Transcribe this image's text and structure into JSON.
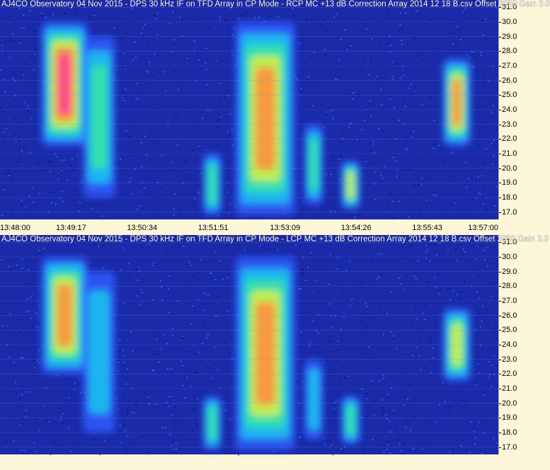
{
  "chart_data": [
    {
      "type": "heatmap",
      "title": "AJ4CO Observatory 04 Nov 2015 - DPS 30 kHz IF on TFD Array in CP Mode - RCP  MC +13 dB  Correction Array 2014 12 18 B.csv  Offset 2050  Gain 3.0",
      "xlabel": "",
      "ylabel": "",
      "x_ticks": [
        "13:48:00",
        "13:49:17",
        "13:50:34",
        "13:51:51",
        "13:53:09",
        "13:54:26",
        "13:55:43",
        "13:57:00"
      ],
      "y_ticks": [
        31.0,
        30.0,
        29.0,
        28.0,
        27.0,
        26.0,
        25.0,
        24.0,
        23.0,
        22.0,
        21.0,
        20.0,
        19.0,
        18.0,
        17.0
      ],
      "y_tick_labels": [
        "31.0",
        "30.0",
        "29.0",
        "28.0",
        "27.0",
        "26.0",
        "25.0",
        "24.0",
        "23.0",
        "22.0",
        "21.0",
        "20.0",
        "19.0",
        "18.0",
        "17.0"
      ],
      "ylim": [
        16.5,
        31.5
      ],
      "xlim": [
        "13:48:00",
        "13:57:00"
      ],
      "colormap": [
        "#1a2aa8",
        "#2e5cff",
        "#19c8f0",
        "#37e8a0",
        "#d8f040",
        "#ff8a3c",
        "#ff3a96"
      ],
      "emission_regions": [
        {
          "t_start": "13:48:45",
          "t_end": "13:49:35",
          "f_low": 21.5,
          "f_high": 30.0,
          "peak": 0.95
        },
        {
          "t_start": "13:49:30",
          "t_end": "13:50:05",
          "f_low": 18.0,
          "f_high": 29.0,
          "peak": 0.45
        },
        {
          "t_start": "13:51:40",
          "t_end": "13:52:00",
          "f_low": 16.8,
          "f_high": 21.0,
          "peak": 0.55
        },
        {
          "t_start": "13:52:15",
          "t_end": "13:53:20",
          "f_low": 16.8,
          "f_high": 30.0,
          "peak": 0.9
        },
        {
          "t_start": "13:53:30",
          "t_end": "13:53:50",
          "f_low": 17.5,
          "f_high": 23.0,
          "peak": 0.45
        },
        {
          "t_start": "13:54:10",
          "t_end": "13:54:30",
          "f_low": 17.2,
          "f_high": 20.5,
          "peak": 0.6
        },
        {
          "t_start": "13:56:00",
          "t_end": "13:56:30",
          "f_low": 21.5,
          "f_high": 27.5,
          "peak": 0.75
        }
      ]
    },
    {
      "type": "heatmap",
      "title": "AJ4CO Observatory 04 Nov 2015 - DPS 30 kHz IF on TFD Array in CP Mode - LCP  MC +13 dB  Correction Array 2014 12 18 B.csv  Offset 2050  Gain 3.0",
      "xlabel": "",
      "ylabel": "",
      "y_ticks": [
        31.0,
        30.0,
        29.0,
        28.0,
        27.0,
        26.0,
        25.0,
        24.0,
        23.0,
        22.0,
        21.0,
        20.0,
        19.0,
        18.0,
        17.0
      ],
      "y_tick_labels": [
        "31.0",
        "30.0",
        "29.0",
        "28.0",
        "27.0",
        "26.0",
        "25.0",
        "24.0",
        "23.0",
        "22.0",
        "21.0",
        "20.0",
        "19.0",
        "18.0",
        "17.0"
      ],
      "ylim": [
        16.5,
        31.5
      ],
      "xlim": [
        "13:48:00",
        "13:57:00"
      ],
      "colormap": [
        "#1a2aa8",
        "#2e5cff",
        "#19c8f0",
        "#37e8a0",
        "#d8f040",
        "#ff8a3c",
        "#ff3a96"
      ],
      "emission_regions": [
        {
          "t_start": "13:48:45",
          "t_end": "13:49:35",
          "f_low": 22.0,
          "f_high": 30.0,
          "peak": 0.8
        },
        {
          "t_start": "13:49:30",
          "t_end": "13:50:05",
          "f_low": 18.0,
          "f_high": 29.0,
          "peak": 0.4
        },
        {
          "t_start": "13:51:40",
          "t_end": "13:52:00",
          "f_low": 16.8,
          "f_high": 20.5,
          "peak": 0.5
        },
        {
          "t_start": "13:52:15",
          "t_end": "13:53:20",
          "f_low": 16.8,
          "f_high": 30.0,
          "peak": 0.85
        },
        {
          "t_start": "13:53:30",
          "t_end": "13:53:50",
          "f_low": 17.5,
          "f_high": 23.0,
          "peak": 0.4
        },
        {
          "t_start": "13:54:10",
          "t_end": "13:54:30",
          "f_low": 17.2,
          "f_high": 20.5,
          "peak": 0.55
        },
        {
          "t_start": "13:56:00",
          "t_end": "13:56:30",
          "f_low": 21.5,
          "f_high": 26.5,
          "peak": 0.65
        }
      ]
    }
  ]
}
